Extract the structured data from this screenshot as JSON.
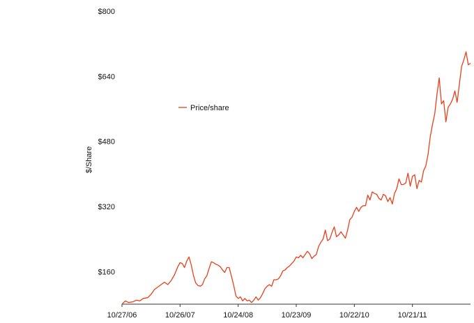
{
  "chart_data": {
    "type": "line",
    "title": "",
    "xlabel": "",
    "ylabel": "$/Share",
    "ylim": [
      80,
      800
    ],
    "xlim": [
      "2006-10-27",
      "2012-10-19"
    ],
    "grid": false,
    "legend_position": "upper-left",
    "x_tick_labels": [
      "10/27/06",
      "10/26/07",
      "10/24/08",
      "10/23/09",
      "10/22/10",
      "10/21/11"
    ],
    "x_ticks": [
      "2006-10-27",
      "2007-10-26",
      "2008-10-24",
      "2009-10-23",
      "2010-10-22",
      "2011-10-21"
    ],
    "y_ticks": [
      160,
      320,
      480,
      640,
      800
    ],
    "y_tick_labels": [
      "$160",
      "$320",
      "$480",
      "$640",
      "$800"
    ],
    "series": [
      {
        "name": "Price/share",
        "color": "#e8401c",
        "points": [
          [
            "2006-10-27",
            80
          ],
          [
            "2006-11-17",
            88
          ],
          [
            "2006-12-08",
            84
          ],
          [
            "2007-01-05",
            86
          ],
          [
            "2007-01-26",
            90
          ],
          [
            "2007-02-16",
            88
          ],
          [
            "2007-03-09",
            94
          ],
          [
            "2007-04-06",
            96
          ],
          [
            "2007-04-27",
            104
          ],
          [
            "2007-05-18",
            116
          ],
          [
            "2007-06-08",
            122
          ],
          [
            "2007-06-29",
            128
          ],
          [
            "2007-07-20",
            134
          ],
          [
            "2007-08-10",
            128
          ],
          [
            "2007-08-31",
            138
          ],
          [
            "2007-09-21",
            152
          ],
          [
            "2007-10-12",
            172
          ],
          [
            "2007-10-26",
            182
          ],
          [
            "2007-11-09",
            180
          ],
          [
            "2007-11-23",
            170
          ],
          [
            "2007-12-07",
            186
          ],
          [
            "2007-12-21",
            196
          ],
          [
            "2008-01-04",
            176
          ],
          [
            "2008-01-18",
            150
          ],
          [
            "2008-02-01",
            132
          ],
          [
            "2008-02-15",
            126
          ],
          [
            "2008-02-29",
            124
          ],
          [
            "2008-03-14",
            128
          ],
          [
            "2008-03-28",
            142
          ],
          [
            "2008-04-11",
            150
          ],
          [
            "2008-04-25",
            168
          ],
          [
            "2008-05-09",
            184
          ],
          [
            "2008-05-23",
            182
          ],
          [
            "2008-06-06",
            178
          ],
          [
            "2008-06-20",
            176
          ],
          [
            "2008-07-04",
            172
          ],
          [
            "2008-07-18",
            164
          ],
          [
            "2008-08-01",
            158
          ],
          [
            "2008-08-15",
            170
          ],
          [
            "2008-08-29",
            170
          ],
          [
            "2008-09-12",
            148
          ],
          [
            "2008-09-26",
            126
          ],
          [
            "2008-10-10",
            100
          ],
          [
            "2008-10-24",
            94
          ],
          [
            "2008-11-07",
            98
          ],
          [
            "2008-11-21",
            88
          ],
          [
            "2008-12-05",
            94
          ],
          [
            "2008-12-19",
            88
          ],
          [
            "2009-01-02",
            90
          ],
          [
            "2009-01-16",
            84
          ],
          [
            "2009-01-30",
            90
          ],
          [
            "2009-02-13",
            98
          ],
          [
            "2009-02-27",
            90
          ],
          [
            "2009-03-13",
            96
          ],
          [
            "2009-03-27",
            106
          ],
          [
            "2009-04-10",
            118
          ],
          [
            "2009-04-24",
            124
          ],
          [
            "2009-05-08",
            128
          ],
          [
            "2009-05-22",
            124
          ],
          [
            "2009-06-05",
            140
          ],
          [
            "2009-06-19",
            140
          ],
          [
            "2009-07-03",
            142
          ],
          [
            "2009-07-17",
            150
          ],
          [
            "2009-07-31",
            162
          ],
          [
            "2009-08-14",
            164
          ],
          [
            "2009-08-28",
            170
          ],
          [
            "2009-09-11",
            174
          ],
          [
            "2009-09-25",
            180
          ],
          [
            "2009-10-09",
            186
          ],
          [
            "2009-10-23",
            196
          ],
          [
            "2009-11-06",
            194
          ],
          [
            "2009-11-20",
            200
          ],
          [
            "2009-12-04",
            194
          ],
          [
            "2009-12-18",
            202
          ],
          [
            "2010-01-01",
            210
          ],
          [
            "2010-01-15",
            204
          ],
          [
            "2010-01-29",
            192
          ],
          [
            "2010-02-12",
            198
          ],
          [
            "2010-02-26",
            202
          ],
          [
            "2010-03-12",
            222
          ],
          [
            "2010-03-26",
            232
          ],
          [
            "2010-04-09",
            240
          ],
          [
            "2010-04-23",
            262
          ],
          [
            "2010-05-07",
            236
          ],
          [
            "2010-05-21",
            240
          ],
          [
            "2010-06-04",
            256
          ],
          [
            "2010-06-18",
            270
          ],
          [
            "2010-07-02",
            246
          ],
          [
            "2010-07-16",
            250
          ],
          [
            "2010-07-30",
            258
          ],
          [
            "2010-08-13",
            250
          ],
          [
            "2010-08-27",
            242
          ],
          [
            "2010-09-10",
            262
          ],
          [
            "2010-09-24",
            288
          ],
          [
            "2010-10-08",
            294
          ],
          [
            "2010-10-22",
            308
          ],
          [
            "2010-11-05",
            318
          ],
          [
            "2010-11-19",
            308
          ],
          [
            "2010-12-03",
            318
          ],
          [
            "2010-12-17",
            322
          ],
          [
            "2010-12-31",
            322
          ],
          [
            "2011-01-14",
            348
          ],
          [
            "2011-01-28",
            336
          ],
          [
            "2011-02-11",
            356
          ],
          [
            "2011-02-25",
            352
          ],
          [
            "2011-03-11",
            350
          ],
          [
            "2011-03-25",
            340
          ],
          [
            "2011-04-08",
            336
          ],
          [
            "2011-04-22",
            350
          ],
          [
            "2011-05-06",
            346
          ],
          [
            "2011-05-20",
            332
          ],
          [
            "2011-06-03",
            342
          ],
          [
            "2011-06-17",
            326
          ],
          [
            "2011-07-01",
            352
          ],
          [
            "2011-07-15",
            364
          ],
          [
            "2011-07-29",
            388
          ],
          [
            "2011-08-12",
            374
          ],
          [
            "2011-08-26",
            374
          ],
          [
            "2011-09-09",
            378
          ],
          [
            "2011-09-23",
            402
          ],
          [
            "2011-10-07",
            370
          ],
          [
            "2011-10-21",
            394
          ],
          [
            "2011-11-04",
            398
          ],
          [
            "2011-11-18",
            364
          ],
          [
            "2011-12-02",
            384
          ],
          [
            "2011-12-16",
            380
          ],
          [
            "2011-12-30",
            408
          ],
          [
            "2012-01-13",
            420
          ],
          [
            "2012-01-27",
            448
          ],
          [
            "2012-02-10",
            492
          ],
          [
            "2012-02-24",
            522
          ],
          [
            "2012-03-09",
            548
          ],
          [
            "2012-03-23",
            596
          ],
          [
            "2012-04-06",
            636
          ],
          [
            "2012-04-20",
            572
          ],
          [
            "2012-05-04",
            580
          ],
          [
            "2012-05-18",
            528
          ],
          [
            "2012-06-01",
            564
          ],
          [
            "2012-06-15",
            572
          ],
          [
            "2012-06-29",
            584
          ],
          [
            "2012-07-13",
            604
          ],
          [
            "2012-07-27",
            576
          ],
          [
            "2012-08-10",
            620
          ],
          [
            "2012-08-24",
            664
          ],
          [
            "2012-09-07",
            680
          ],
          [
            "2012-09-21",
            700
          ],
          [
            "2012-10-05",
            668
          ],
          [
            "2012-10-19",
            672
          ]
        ]
      }
    ]
  }
}
